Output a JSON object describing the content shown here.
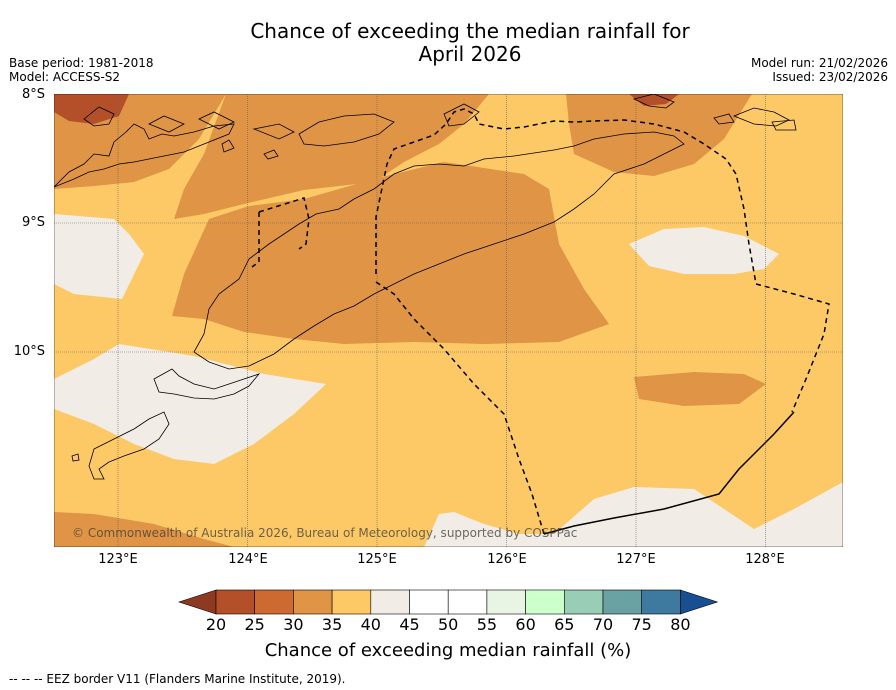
{
  "title": {
    "line1": "Chance of exceeding the median rainfall for",
    "line2": "April 2026"
  },
  "meta": {
    "base_period": "Base period: 1981-2018",
    "model": "Model: ACCESS-S2",
    "model_run": "Model run: 21/02/2026",
    "issued": "Issued: 23/02/2026"
  },
  "map": {
    "lat_labels": [
      "8°S",
      "9°S",
      "10°S"
    ],
    "lon_labels": [
      "123°E",
      "124°E",
      "125°E",
      "126°E",
      "127°E",
      "128°E"
    ],
    "copyright": "© Commonwealth of Australia 2026, Bureau of Meteorology, supported by COSPPac",
    "region_colors": {
      "20-25": "#b3502a",
      "30-35": "#e09445",
      "35-40": "#fdc966",
      "40-45": "#f2ece6"
    }
  },
  "colorbar": {
    "ticks": [
      "20",
      "25",
      "30",
      "35",
      "40",
      "45",
      "50",
      "55",
      "60",
      "65",
      "70",
      "75",
      "80"
    ],
    "colors": [
      "#8e3a21",
      "#b3502a",
      "#cc6a32",
      "#e09445",
      "#fdc966",
      "#f2ece6",
      "#ffffff",
      "#ffffff",
      "#e8f5e4",
      "#ccffcc",
      "#99cdb6",
      "#6aa2a4",
      "#3e79a0",
      "#174f92"
    ],
    "label": "Chance of exceeding median rainfall (%)"
  },
  "footer": {
    "legend": "--  --  -- EEZ border V11 (Flanders Marine Institute, 2019)."
  }
}
